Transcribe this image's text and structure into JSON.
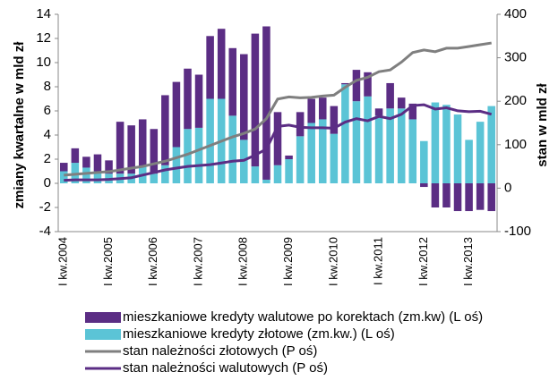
{
  "chart_data": {
    "type": "bar",
    "y_label": "zmiany kwartalne  w mld zł",
    "y2_label": "stan  w mld zł",
    "categories": [
      "I kw.2004",
      null,
      null,
      null,
      "I kw.2005",
      null,
      null,
      null,
      "I kw.2006",
      null,
      null,
      null,
      "I kw.2007",
      null,
      null,
      null,
      "I kw.2008",
      null,
      null,
      null,
      "I kw.2009",
      null,
      null,
      null,
      "I kw.2010",
      null,
      null,
      null,
      "I kw.2011",
      null,
      null,
      null,
      "I kw.2012",
      null,
      null,
      null,
      "I kw.2013",
      null,
      null
    ],
    "series": [
      {
        "name": "mieszkaniowe kredyty walutowe po korektach (zm.kw) (L oś)",
        "color": "#5b2d84",
        "type": "bar",
        "values": [
          0.7,
          1.2,
          0.9,
          1.4,
          1.1,
          4.3,
          4.0,
          3.9,
          3.7,
          5.8,
          5.4,
          5.0,
          4.4,
          5.2,
          5.8,
          5.6,
          7.1,
          11.0,
          12.7,
          4.4,
          0.3,
          2.0,
          2.0,
          1.8,
          2.3,
          0.1,
          2.6,
          2.0,
          0.6,
          2.1,
          0.9,
          1.3,
          -0.3,
          -2.0,
          -2.0,
          -2.3,
          -2.3,
          -2.2,
          -2.3
        ]
      },
      {
        "name": "mieszkaniowe kredyty złotowe (zm.kw.) (L oś)",
        "color": "#5bc4d6",
        "type": "bar",
        "values": [
          1.0,
          1.7,
          1.3,
          1.0,
          0.8,
          0.8,
          0.8,
          1.4,
          0.8,
          1.5,
          3.0,
          4.5,
          4.6,
          7.0,
          7.0,
          5.6,
          3.6,
          1.4,
          0.3,
          1.5,
          2.0,
          3.9,
          5.0,
          5.3,
          4.1,
          8.2,
          6.8,
          7.2,
          5.6,
          6.2,
          6.2,
          5.3,
          3.5,
          6.7,
          6.5,
          5.7,
          3.6,
          5.1,
          6.4
        ]
      },
      {
        "name": "stan należności złotowych (P oś)",
        "color": "#7f7f7f",
        "type": "line",
        "axis": "y2",
        "values": [
          30,
          32,
          34,
          36,
          38,
          42,
          46,
          50,
          56,
          62,
          70,
          78,
          88,
          98,
          108,
          118,
          126,
          136,
          160,
          205,
          210,
          208,
          209,
          212,
          214,
          232,
          248,
          255,
          268,
          272,
          290,
          312,
          318,
          314,
          322,
          322,
          326,
          330,
          334
        ]
      },
      {
        "name": "stan należności walutowych (P oś)",
        "color": "#5b2d84",
        "type": "line",
        "axis": "y2",
        "values": [
          18,
          19,
          19,
          19,
          20,
          22,
          24,
          30,
          36,
          42,
          46,
          50,
          52,
          54,
          58,
          62,
          64,
          76,
          90,
          142,
          145,
          140,
          139,
          139,
          138,
          152,
          160,
          155,
          165,
          160,
          170,
          190,
          192,
          182,
          185,
          178,
          176,
          177,
          170
        ]
      }
    ],
    "ylim": [
      -4,
      14
    ],
    "yticks": [
      -4,
      -2,
      0,
      2,
      4,
      6,
      8,
      10,
      12,
      14
    ],
    "y2lim": [
      -100,
      400
    ],
    "y2ticks": [
      -100,
      0,
      100,
      200,
      300,
      400
    ],
    "grid": false
  }
}
